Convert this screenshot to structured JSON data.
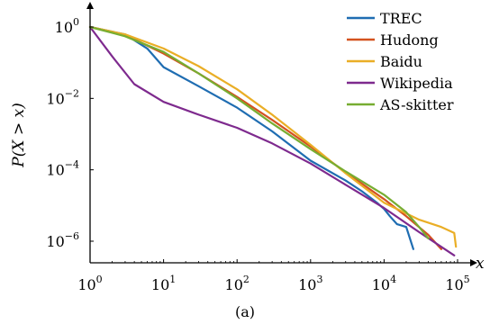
{
  "chart_data": {
    "type": "line",
    "xscale": "log",
    "yscale": "log",
    "xlim": [
      1,
      100000
    ],
    "ylim": [
      1e-07,
      1.5
    ],
    "xlabel": "x",
    "ylabel": "P(X > x)",
    "caption": "(a)",
    "legend_position": "top-right",
    "grid": false,
    "x_ticks": [
      {
        "base": "10",
        "exp": "0",
        "value": 1
      },
      {
        "base": "10",
        "exp": "1",
        "value": 10
      },
      {
        "base": "10",
        "exp": "2",
        "value": 100
      },
      {
        "base": "10",
        "exp": "3",
        "value": 1000
      },
      {
        "base": "10",
        "exp": "4",
        "value": 10000
      },
      {
        "base": "10",
        "exp": "5",
        "value": 100000
      }
    ],
    "y_ticks": [
      {
        "base": "10",
        "exp": "0",
        "value": 1
      },
      {
        "base": "10",
        "exp": "−2",
        "value": 0.01
      },
      {
        "base": "10",
        "exp": "−4",
        "value": 0.0001
      },
      {
        "base": "10",
        "exp": "−6",
        "value": 1e-06
      }
    ],
    "series": [
      {
        "name": "TREC",
        "color": "#1f6db2",
        "x": [
          1,
          3,
          6,
          10,
          30,
          100,
          300,
          1000,
          3000,
          5000,
          8000,
          10000,
          12000,
          15000,
          20000,
          25000
        ],
        "y": [
          1.0,
          0.62,
          0.25,
          0.075,
          0.022,
          0.0055,
          0.0012,
          0.00018,
          5e-05,
          2.5e-05,
          1.2e-05,
          8e-06,
          5e-06,
          3e-06,
          2.5e-06,
          6e-07
        ]
      },
      {
        "name": "Hudong",
        "color": "#d4521f",
        "x": [
          1,
          3,
          10,
          30,
          100,
          300,
          1000,
          3000,
          10000,
          20000,
          40000,
          60000
        ],
        "y": [
          1.0,
          0.6,
          0.18,
          0.05,
          0.011,
          0.0025,
          0.00045,
          8.5e-05,
          1.5e-05,
          5e-06,
          1.5e-06,
          6e-07
        ]
      },
      {
        "name": "Baidu",
        "color": "#eaae26",
        "x": [
          1,
          3,
          10,
          30,
          100,
          300,
          1000,
          3000,
          10000,
          30000,
          60000,
          90000,
          95000
        ],
        "y": [
          1.0,
          0.62,
          0.25,
          0.08,
          0.018,
          0.0035,
          0.0005,
          8e-05,
          1.2e-05,
          4e-06,
          2.5e-06,
          1.7e-06,
          7e-07
        ]
      },
      {
        "name": "Wikipedia",
        "color": "#7e2a8e",
        "x": [
          1,
          2,
          4,
          10,
          30,
          100,
          300,
          1000,
          3000,
          10000,
          30000,
          90000
        ],
        "y": [
          1.0,
          0.15,
          0.025,
          0.008,
          0.0035,
          0.0015,
          0.00055,
          0.00015,
          3.8e-05,
          8.5e-06,
          1.8e-06,
          4e-07
        ]
      },
      {
        "name": "AS-skitter",
        "color": "#77ad31",
        "x": [
          1,
          3,
          10,
          30,
          100,
          300,
          1000,
          3000,
          10000,
          20000,
          30000,
          40000
        ],
        "y": [
          1.0,
          0.55,
          0.2,
          0.05,
          0.01,
          0.002,
          0.00038,
          9e-05,
          2e-05,
          6.5e-06,
          2.5e-06,
          1.2e-06
        ]
      }
    ]
  }
}
